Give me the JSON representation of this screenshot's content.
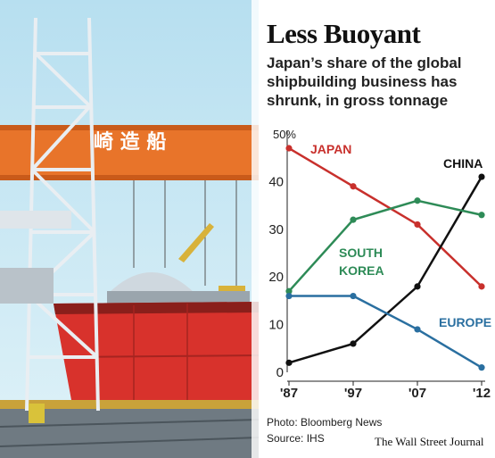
{
  "header": {
    "title": "Less Buoyant",
    "subtitle": "Japan’s share of the global shipbuilding business has shrunk, in gross tonnage"
  },
  "photo": {
    "sign_text": "崎 造 船"
  },
  "footer": {
    "photo_credit": "Photo: Bloomberg News",
    "source": "Source: IHS",
    "publisher": "The Wall Street Journal"
  },
  "colors": {
    "japan": "#c8302c",
    "china": "#111111",
    "south_korea": "#2e8b57",
    "europe": "#2a6fa0"
  },
  "chart_data": {
    "type": "line",
    "title": "Less Buoyant",
    "x": [
      "'87",
      "'97",
      "'07",
      "'12"
    ],
    "ylim": [
      0,
      50
    ],
    "y_ticks": [
      "0",
      "10",
      "20",
      "30",
      "40",
      "50%"
    ],
    "grid": false,
    "series": [
      {
        "name": "JAPAN",
        "values": [
          47,
          39,
          31,
          18
        ],
        "color": "#c8302c"
      },
      {
        "name": "CHINA",
        "values": [
          2,
          6,
          18,
          41
        ],
        "color": "#111111"
      },
      {
        "name": "SOUTH KOREA",
        "values": [
          17,
          32,
          36,
          33
        ],
        "color": "#2e8b57"
      },
      {
        "name": "EUROPE",
        "values": [
          16,
          16,
          9,
          1
        ],
        "color": "#2a6fa0"
      }
    ]
  }
}
